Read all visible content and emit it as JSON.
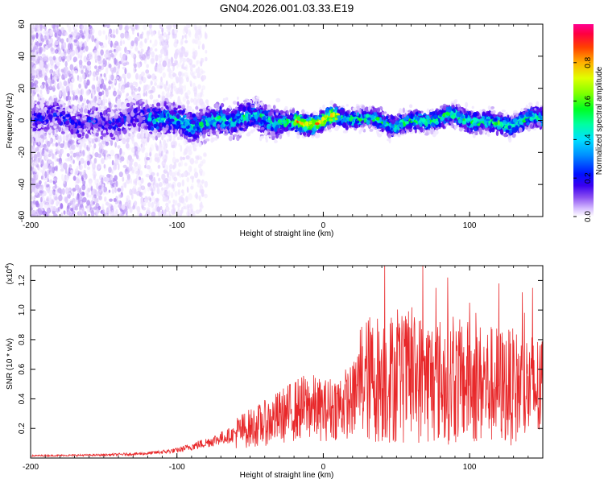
{
  "title": "GN04.2026.001.03.33.E19",
  "chart_data": [
    {
      "type": "heatmap",
      "name": "spectrogram",
      "xlabel": "Height of straight line (km)",
      "ylabel": "Frequency (Hz)",
      "xlim": [
        -200,
        150
      ],
      "ylim": [
        -60,
        60
      ],
      "xticks": [
        -200,
        -100,
        0,
        100
      ],
      "yticks": [
        -60,
        -40,
        -20,
        0,
        20,
        40,
        60
      ],
      "yticklabels": [
        "-60",
        "-40",
        "-20",
        "0",
        "20",
        "40",
        "60"
      ],
      "colorbar": {
        "label": "Normalized spectral amplitude",
        "range": [
          0,
          1
        ],
        "ticks": [
          0.0,
          0.2,
          0.4,
          0.6,
          0.8
        ],
        "ticklabels": [
          "0.0",
          "0.2",
          "0.4",
          "0.6",
          "0.8"
        ],
        "colors": [
          "#ffffff",
          "#e8d8ff",
          "#a070f0",
          "#5a00e8",
          "#0000ff",
          "#00a0ff",
          "#00ffc8",
          "#00ff00",
          "#a0ff00",
          "#ffff00",
          "#ff9000",
          "#ff0000",
          "#ff0080"
        ]
      },
      "band": {
        "center_hz": 0,
        "halfwidth_hz": 8,
        "noise_region_km": [
          -200,
          -95
        ],
        "strongest_km": [
          -20,
          10
        ]
      }
    },
    {
      "type": "line",
      "name": "snr",
      "xlabel": "Height of straight line (km)",
      "ylabel": "SNR (10 * v/v)",
      "yscale_label": "(x10",
      "yscale_exp": "4",
      "yscale_close": ")",
      "xlim": [
        -200,
        150
      ],
      "ylim": [
        0,
        1.3
      ],
      "xticks": [
        -200,
        -100,
        0,
        100
      ],
      "yticks": [
        0.2,
        0.4,
        0.6,
        0.8,
        1.0,
        1.2
      ],
      "yticklabels": [
        "0.2",
        "0.4",
        "0.6",
        "0.8",
        "1.0",
        "1.2"
      ],
      "color": "#e8282a",
      "envelope_x": [
        -200,
        -150,
        -120,
        -100,
        -80,
        -60,
        -40,
        -20,
        -10,
        0,
        10,
        20,
        25,
        40,
        60,
        80,
        100,
        120,
        150
      ],
      "envelope_y": [
        0.015,
        0.02,
        0.03,
        0.05,
        0.1,
        0.16,
        0.22,
        0.3,
        0.33,
        0.3,
        0.33,
        0.36,
        0.48,
        0.5,
        0.5,
        0.48,
        0.47,
        0.45,
        0.42
      ],
      "peaks": [
        {
          "x": 42,
          "y": 1.3
        },
        {
          "x": 68,
          "y": 1.3
        },
        {
          "x": 85,
          "y": 1.22
        },
        {
          "x": 77,
          "y": 1.15
        },
        {
          "x": 120,
          "y": 1.18
        },
        {
          "x": 143,
          "y": 1.15
        },
        {
          "x": 100,
          "y": 1.05
        },
        {
          "x": 136,
          "y": 1.12
        }
      ]
    }
  ]
}
